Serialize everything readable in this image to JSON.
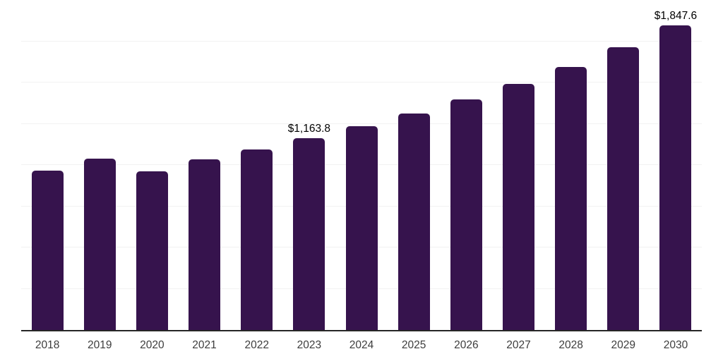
{
  "chart_data": {
    "type": "bar",
    "title": "",
    "xlabel": "",
    "ylabel": "",
    "categories": [
      "2018",
      "2019",
      "2020",
      "2021",
      "2022",
      "2023",
      "2024",
      "2025",
      "2026",
      "2027",
      "2028",
      "2029",
      "2030"
    ],
    "values": [
      965,
      1040,
      960,
      1035,
      1095,
      1163.8,
      1235,
      1313,
      1396,
      1490,
      1592,
      1715,
      1847.6
    ],
    "point_labels": [
      "",
      "",
      "",
      "",
      "",
      "$1,163.8",
      "",
      "",
      "",
      "",
      "",
      "",
      "$1,847.6"
    ],
    "ylim": [
      0,
      2000
    ],
    "gridline_step": 250,
    "grid": "horizontal",
    "legend": "none",
    "colors": {
      "bar": "#36134D",
      "gridline": "#f2f2f2",
      "axis_line": "#262626",
      "tick_label": "#3d3d3d",
      "value_label": "#000000",
      "background": "#ffffff"
    }
  }
}
